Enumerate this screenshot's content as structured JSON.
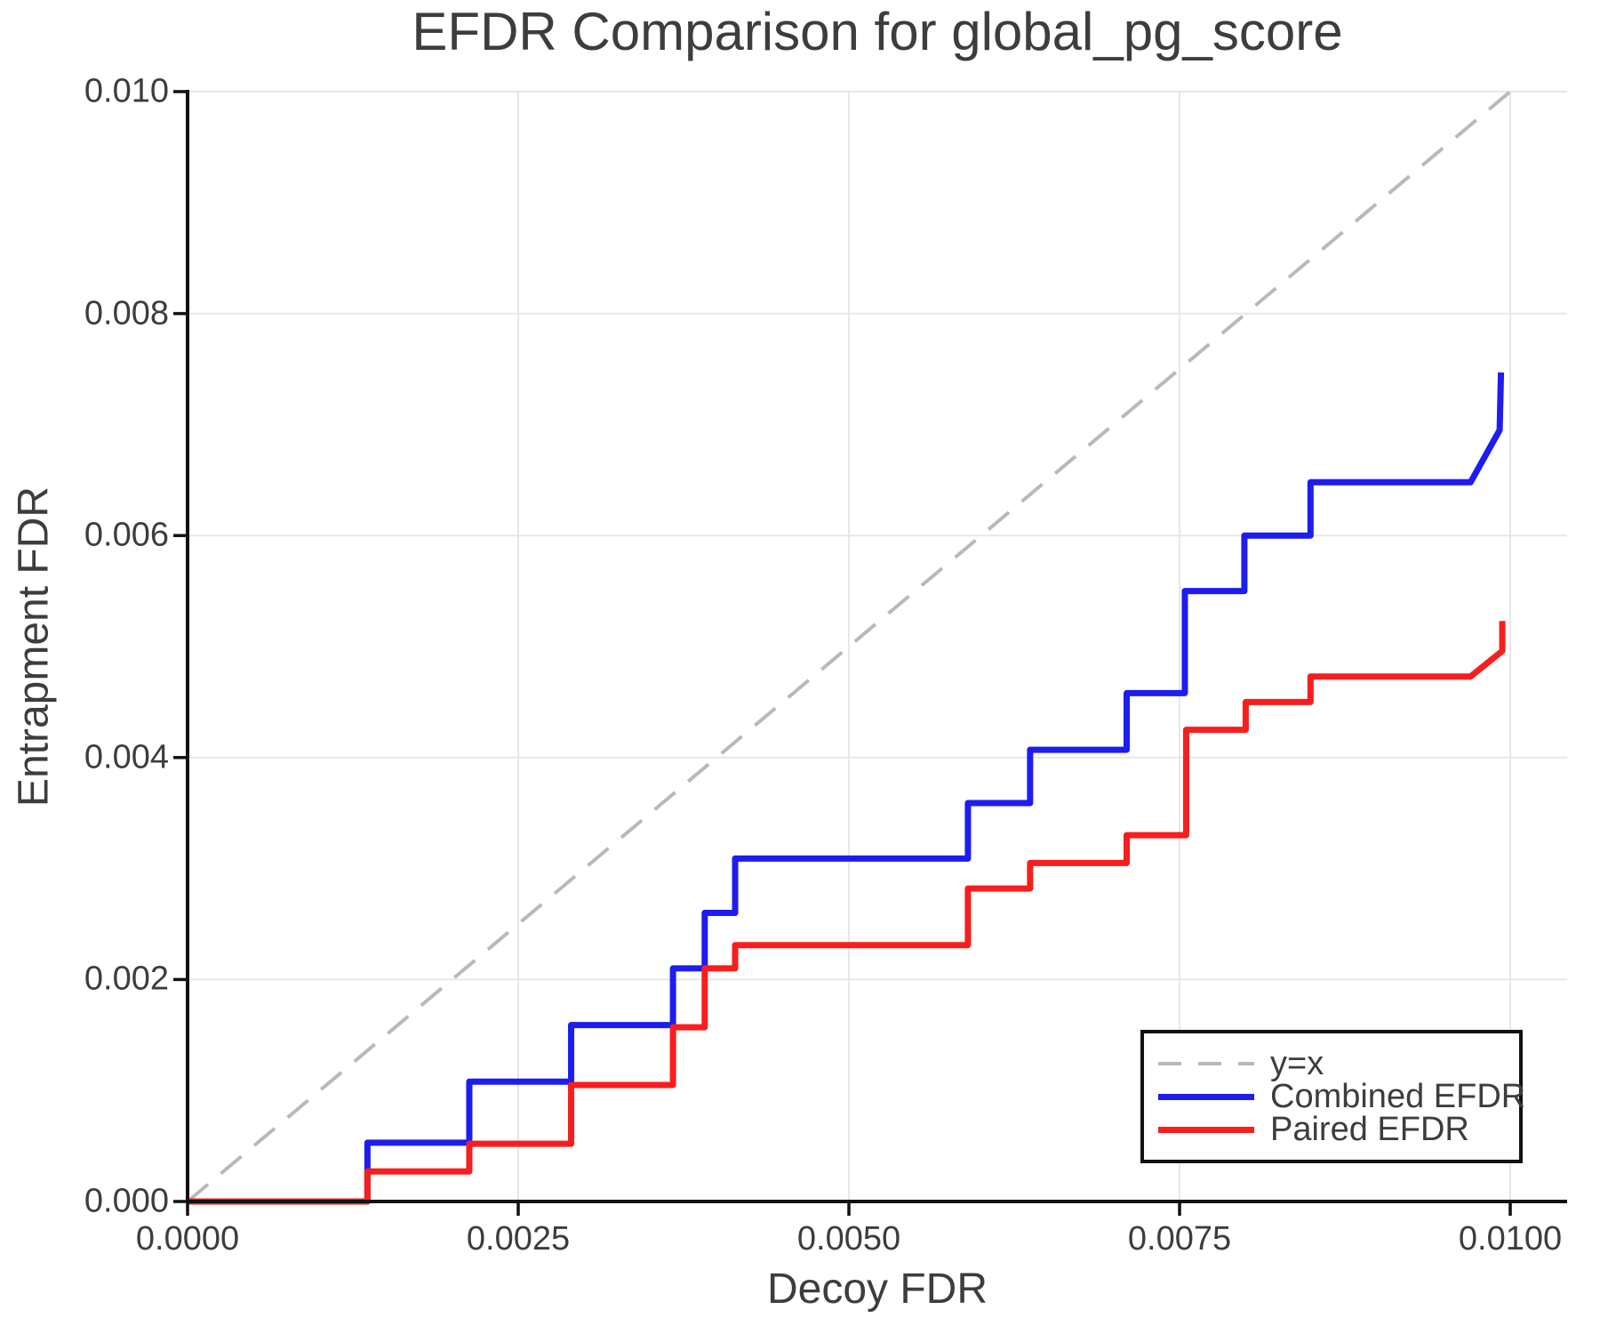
{
  "figure": {
    "title": "EFDR Comparison for global_pg_score"
  },
  "chart_data": {
    "type": "line",
    "title": "EFDR Comparison for global_pg_score",
    "xlabel": "Decoy FDR",
    "ylabel": "Entrapment FDR",
    "xlim": [
      0,
      0.01043
    ],
    "ylim": [
      0,
      0.01
    ],
    "grid": true,
    "legend_position": "lower right",
    "xticks": {
      "values": [
        0,
        0.0025,
        0.005,
        0.0075,
        0.01
      ],
      "labels": [
        "0.0000",
        "0.0025",
        "0.0050",
        "0.0075",
        "0.0100"
      ]
    },
    "yticks": {
      "values": [
        0,
        0.002,
        0.004,
        0.006,
        0.008,
        0.01
      ],
      "labels": [
        "0.000",
        "0.002",
        "0.004",
        "0.006",
        "0.008",
        "0.010"
      ]
    },
    "colors": {
      "grid": "#e7e7e7",
      "spine": "#111111",
      "text": "#3d3d3d",
      "identity_line": "#b9b9b9",
      "combined": "#1d1df0",
      "paired": "#f71e1e"
    },
    "series": [
      {
        "name": "y=x",
        "style": "dashed",
        "color": "#b9b9b9",
        "points": [
          [
            0,
            0
          ],
          [
            0.01,
            0.01
          ]
        ]
      },
      {
        "name": "Combined EFDR",
        "style": "solid",
        "color": "#1d1df0",
        "points": [
          [
            0,
            0
          ],
          [
            0.00136,
            0
          ],
          [
            0.00136,
            0.00053
          ],
          [
            0.00213,
            0.00053
          ],
          [
            0.00213,
            0.00108
          ],
          [
            0.0029,
            0.00108
          ],
          [
            0.0029,
            0.00159
          ],
          [
            0.00367,
            0.00159
          ],
          [
            0.00367,
            0.0021
          ],
          [
            0.00391,
            0.0021
          ],
          [
            0.00391,
            0.0026
          ],
          [
            0.00414,
            0.0026
          ],
          [
            0.00414,
            0.00309
          ],
          [
            0.0059,
            0.00309
          ],
          [
            0.0059,
            0.00359
          ],
          [
            0.00637,
            0.00359
          ],
          [
            0.00637,
            0.00407
          ],
          [
            0.0071,
            0.00407
          ],
          [
            0.0071,
            0.00458
          ],
          [
            0.00754,
            0.00458
          ],
          [
            0.00754,
            0.0055
          ],
          [
            0.00799,
            0.0055
          ],
          [
            0.00799,
            0.006
          ],
          [
            0.00849,
            0.006
          ],
          [
            0.00849,
            0.00648
          ],
          [
            0.0097,
            0.00648
          ],
          [
            0.00992,
            0.00695
          ],
          [
            0.00993,
            0.00747
          ]
        ]
      },
      {
        "name": "Paired EFDR",
        "style": "solid",
        "color": "#f71e1e",
        "points": [
          [
            0,
            0
          ],
          [
            0.00136,
            0
          ],
          [
            0.00136,
            0.00027
          ],
          [
            0.00213,
            0.00027
          ],
          [
            0.00213,
            0.00052
          ],
          [
            0.0029,
            0.00052
          ],
          [
            0.0029,
            0.00105
          ],
          [
            0.00367,
            0.00105
          ],
          [
            0.00367,
            0.00157
          ],
          [
            0.00391,
            0.00157
          ],
          [
            0.00391,
            0.0021
          ],
          [
            0.00414,
            0.0021
          ],
          [
            0.00414,
            0.00231
          ],
          [
            0.0059,
            0.00231
          ],
          [
            0.0059,
            0.00282
          ],
          [
            0.00637,
            0.00282
          ],
          [
            0.00637,
            0.00305
          ],
          [
            0.0071,
            0.00305
          ],
          [
            0.0071,
            0.0033
          ],
          [
            0.00755,
            0.0033
          ],
          [
            0.00755,
            0.00425
          ],
          [
            0.008,
            0.00425
          ],
          [
            0.008,
            0.0045
          ],
          [
            0.00849,
            0.0045
          ],
          [
            0.00849,
            0.00473
          ],
          [
            0.0097,
            0.00473
          ],
          [
            0.00994,
            0.00496
          ],
          [
            0.00994,
            0.00523
          ]
        ]
      }
    ]
  }
}
